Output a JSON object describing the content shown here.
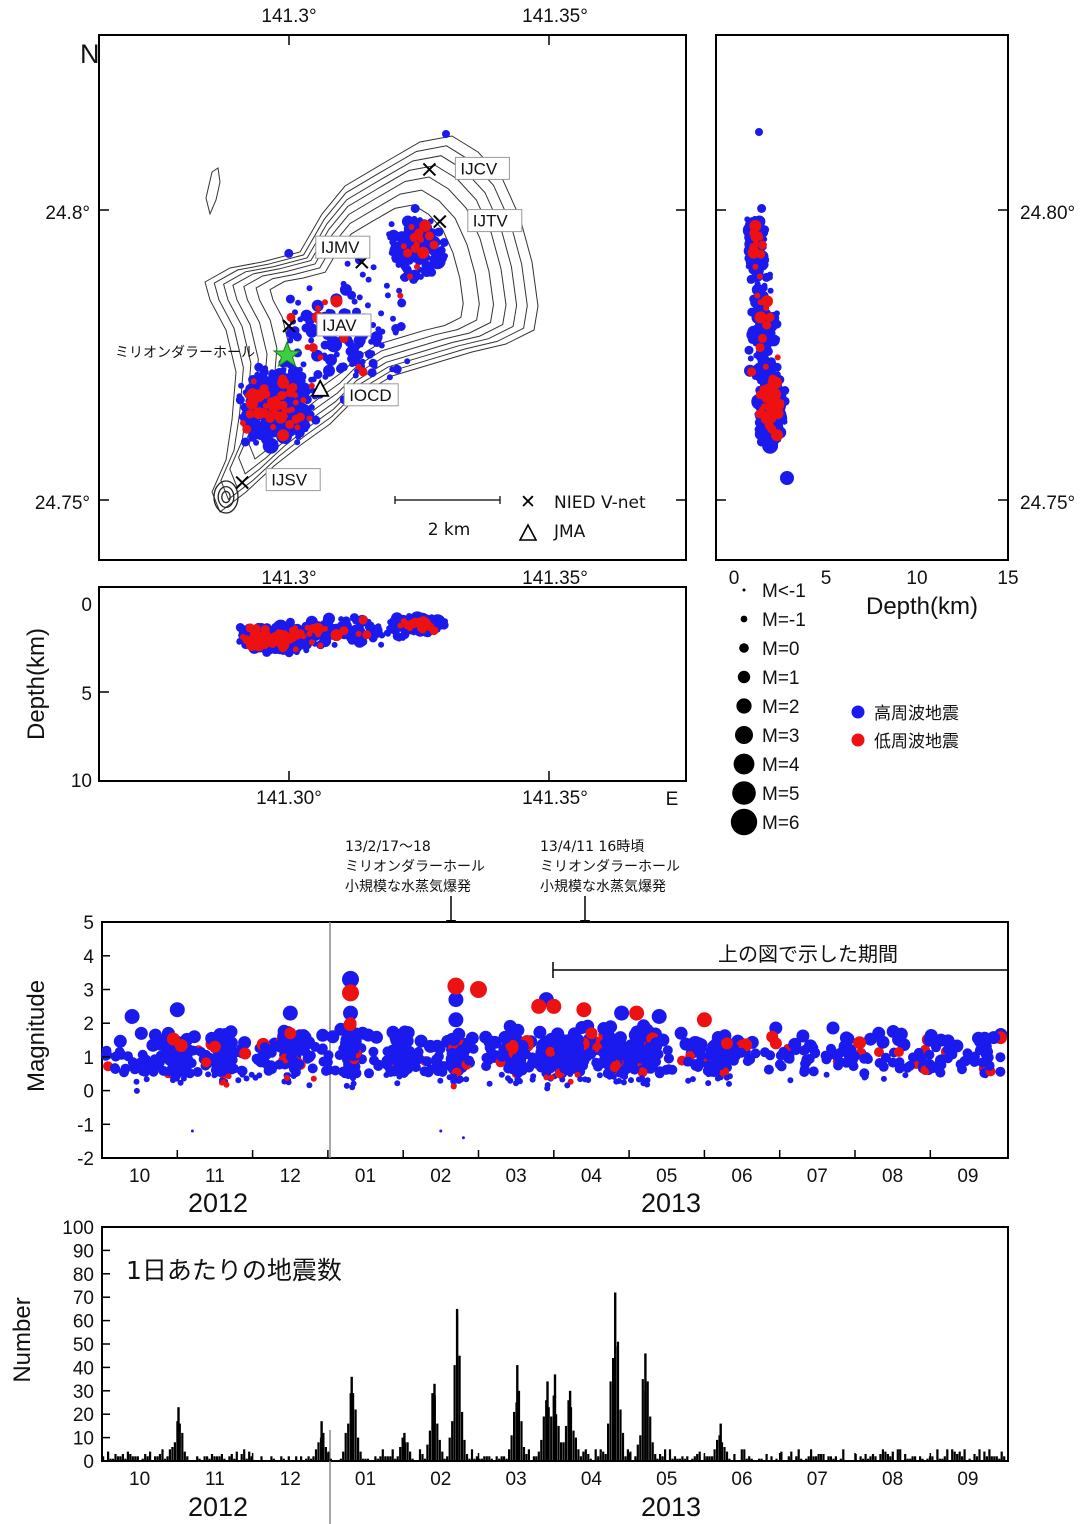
{
  "colors": {
    "high": "#1a1aee",
    "low": "#ee1111",
    "star": "#3ecf3e",
    "contour": "#333333"
  },
  "map": {
    "north_label": "N",
    "top_ticks": [
      "141.3°",
      "141.35°"
    ],
    "lat_ticks": [
      "24.8°",
      "24.75°"
    ],
    "stations": [
      {
        "name": "IJCV",
        "type": "x",
        "lon": 141.327,
        "lat": 24.807
      },
      {
        "name": "IJTV",
        "type": "x",
        "lon": 141.329,
        "lat": 24.798
      },
      {
        "name": "IJMV",
        "type": "x",
        "lon": 141.314,
        "lat": 24.791
      },
      {
        "name": "IJAV",
        "type": "x",
        "lon": 141.3,
        "lat": 24.78
      },
      {
        "name": "IOCD",
        "type": "tri",
        "lon": 141.306,
        "lat": 24.769
      },
      {
        "name": "IJSV",
        "type": "x",
        "lon": 141.291,
        "lat": 24.753
      }
    ],
    "crater_label": "ミリオンダラーホール",
    "scale_label": "2 km",
    "legend_station": [
      {
        "type": "x",
        "label": "NIED V-net"
      },
      {
        "type": "tri",
        "label": "JMA"
      }
    ]
  },
  "depth_right": {
    "lat_ticks": [
      "24.80°",
      "24.75°"
    ],
    "x_ticks": [
      "0",
      "5",
      "10",
      "15"
    ],
    "xlabel": "Depth(km)"
  },
  "depth_bottom": {
    "top_ticks": [
      "141.3°",
      "141.35°"
    ],
    "y_ticks": [
      "0",
      "5",
      "10"
    ],
    "ylabel": "Depth(km)",
    "x_ticks": [
      "141.30°",
      "141.35°"
    ],
    "east_label": "E"
  },
  "legend_mag": [
    "M<-1",
    "M=-1",
    "M=0",
    "M=1",
    "M=2",
    "M=3",
    "M=4",
    "M=5",
    "M=6"
  ],
  "legend_type": [
    "高周波地震",
    "低周波地震"
  ],
  "annotations": [
    {
      "lines": [
        "13/2/17～18",
        "ミリオンダラーホール",
        "小規模な水蒸気爆発"
      ]
    },
    {
      "lines": [
        "13/4/11 16時頃",
        "ミリオンダラーホール",
        "小規模な水蒸気爆発"
      ]
    }
  ],
  "period_label": "上の図で示した期間",
  "time_axis": {
    "months": [
      "10",
      "11",
      "12",
      "01",
      "02",
      "03",
      "04",
      "05",
      "06",
      "07",
      "08",
      "09"
    ],
    "years": [
      "2012",
      "2013"
    ]
  },
  "chart_data": [
    {
      "type": "scatter",
      "title": "",
      "ylabel": "Magnitude",
      "ylim": [
        -2,
        5
      ],
      "y_ticks": [
        "-2",
        "-1",
        "0",
        "1",
        "2",
        "3",
        "4",
        "5"
      ],
      "series": [
        {
          "name": "高周波地震",
          "points": [
            [
              0.4,
              2.2
            ],
            [
              1.0,
              2.4
            ],
            [
              2.5,
              2.3
            ],
            [
              3.3,
              3.3
            ],
            [
              3.3,
              2.3
            ],
            [
              4.7,
              2.1
            ],
            [
              4.7,
              2.7
            ],
            [
              5.9,
              2.7
            ],
            [
              6.9,
              2.3
            ],
            [
              7.4,
              2.2
            ],
            [
              1.2,
              -1.2
            ],
            [
              4.5,
              -1.2
            ],
            [
              4.8,
              -1.4
            ]
          ]
        },
        {
          "name": "低周波地震",
          "points": [
            [
              1.5,
              1.3
            ],
            [
              1.9,
              1.1
            ],
            [
              2.5,
              1.7
            ],
            [
              3.3,
              2.9
            ],
            [
              3.3,
              2.0
            ],
            [
              4.7,
              3.1
            ],
            [
              5.0,
              3.0
            ],
            [
              5.8,
              2.5
            ],
            [
              6.0,
              2.5
            ],
            [
              6.4,
              2.4
            ],
            [
              6.5,
              1.7
            ],
            [
              7.1,
              2.3
            ],
            [
              8.0,
              2.1
            ],
            [
              8.3,
              1.4
            ],
            [
              8.9,
              1.6
            ],
            [
              8.95,
              1.4
            ]
          ]
        }
      ]
    },
    {
      "type": "bar",
      "title": "1日あたりの地震数",
      "ylabel": "Number",
      "ylim": [
        0,
        100
      ],
      "y_ticks": [
        "0",
        "10",
        "20",
        "30",
        "40",
        "50",
        "60",
        "70",
        "80",
        "90",
        "100"
      ],
      "peaks": [
        [
          1.0,
          23
        ],
        [
          2.9,
          17
        ],
        [
          3.3,
          36
        ],
        [
          4.0,
          12
        ],
        [
          4.4,
          33
        ],
        [
          4.7,
          65
        ],
        [
          5.5,
          41
        ],
        [
          5.9,
          34
        ],
        [
          6.0,
          37
        ],
        [
          6.2,
          30
        ],
        [
          6.8,
          72
        ],
        [
          7.2,
          46
        ],
        [
          8.2,
          16
        ]
      ]
    }
  ]
}
